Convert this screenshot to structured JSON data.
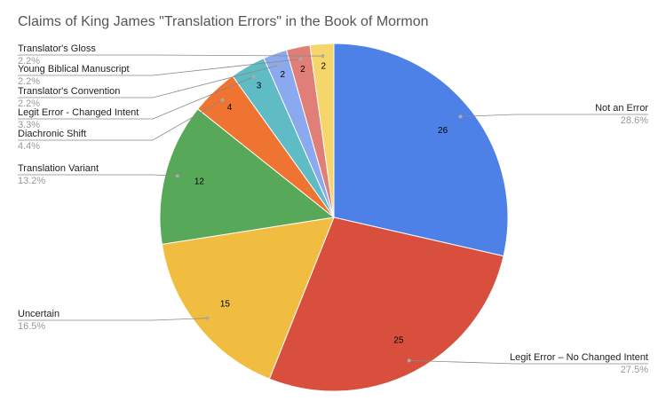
{
  "chart_data": {
    "type": "pie",
    "title": "Claims of King James \"Translation Errors\" in the Book of Mormon",
    "categories": [
      "Not an Error",
      "Legit Error – No Changed Intent",
      "Uncertain",
      "Translation Variant",
      "Diachronic Shift",
      "Legit Error - Changed Intent",
      "Translator's Convention",
      "Young Biblical Manuscript",
      "Translator's Gloss"
    ],
    "values": [
      26,
      25,
      15,
      12,
      4,
      3,
      2,
      2,
      2
    ],
    "percent_labels": [
      "28.6%",
      "27.5%",
      "16.5%",
      "13.2%",
      "4.4%",
      "3.3%",
      "2.2%",
      "2.2%",
      "2.2%"
    ],
    "colors": [
      "#4e81e8",
      "#d94f3d",
      "#f0bd40",
      "#58a85a",
      "#ef7432",
      "#5fbcc4",
      "#8aa9ef",
      "#e07f77",
      "#f6d56b"
    ]
  }
}
